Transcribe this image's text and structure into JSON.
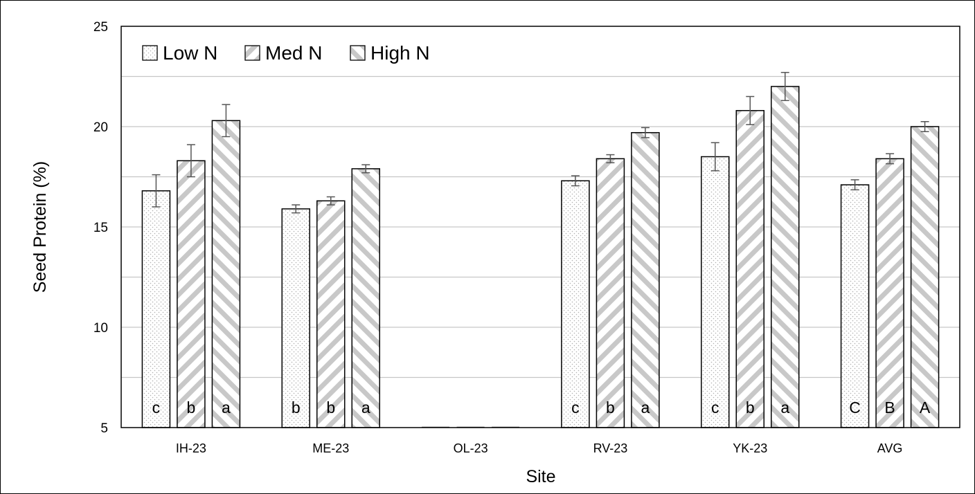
{
  "chart_data": {
    "type": "bar",
    "title": "",
    "xlabel": "Site",
    "ylabel": "Seed Protein (%)",
    "ylim": [
      5,
      25
    ],
    "yticks": [
      5,
      10,
      15,
      20,
      25
    ],
    "grid": true,
    "legend_position": "top-left",
    "categories": [
      "IH-23",
      "ME-23",
      "OL-23",
      "RV-23",
      "YK-23",
      "AVG"
    ],
    "series": [
      {
        "name": "Low N",
        "pattern": "dots",
        "values": [
          16.8,
          15.9,
          null,
          17.3,
          18.5,
          17.1
        ],
        "errors": [
          0.8,
          0.2,
          null,
          0.25,
          0.7,
          0.25
        ],
        "letters": [
          "c",
          "b",
          "",
          "c",
          "c",
          "C"
        ]
      },
      {
        "name": "Med N",
        "pattern": "back-diagonal",
        "values": [
          18.3,
          16.3,
          null,
          18.4,
          20.8,
          18.4
        ],
        "errors": [
          0.8,
          0.2,
          null,
          0.2,
          0.7,
          0.25
        ],
        "letters": [
          "b",
          "b",
          "",
          "b",
          "b",
          "B"
        ]
      },
      {
        "name": "High N",
        "pattern": "forward-diagonal",
        "values": [
          20.3,
          17.9,
          null,
          19.7,
          22.0,
          20.0
        ],
        "errors": [
          0.8,
          0.2,
          null,
          0.25,
          0.7,
          0.25
        ],
        "letters": [
          "a",
          "a",
          "",
          "a",
          "a",
          "A"
        ]
      }
    ],
    "colors": {
      "hatch": "#c8c8c8",
      "dots": "#b0b0b0",
      "grid": "#c6c6c6",
      "error_bar": "#555555"
    }
  }
}
